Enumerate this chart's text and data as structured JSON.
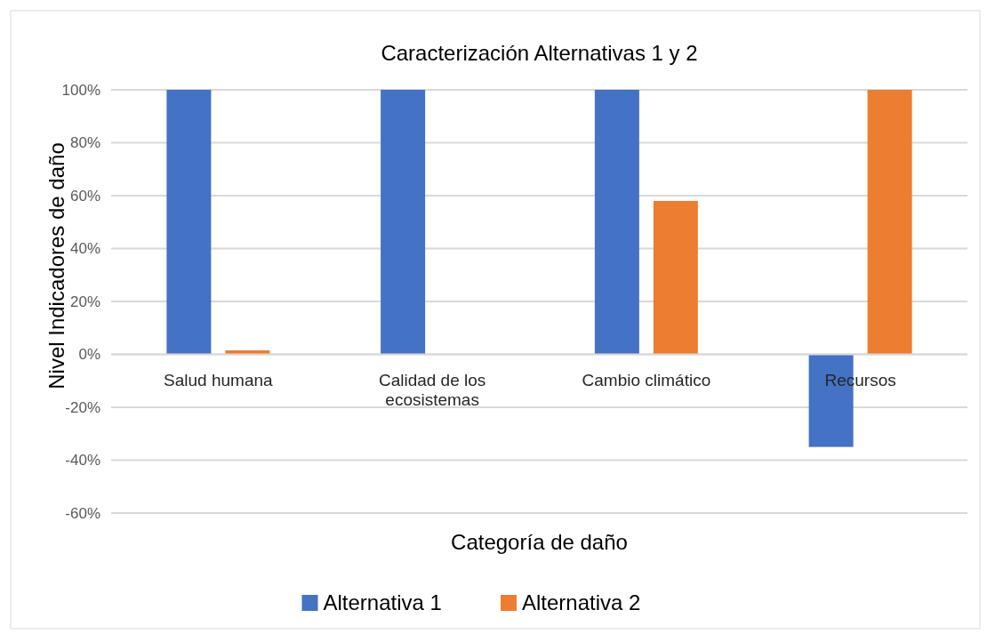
{
  "chart_data": {
    "type": "bar",
    "title": "Caracterización Alternativas 1 y 2",
    "xlabel": "Categoría de daño",
    "ylabel": "Nivel Indicadores de daño",
    "categories": [
      "Salud humana",
      "Calidad de los ecosistemas",
      "Cambio climático",
      "Recursos"
    ],
    "series": [
      {
        "name": "Alternativa 1",
        "color": "#4472c4",
        "values": [
          100,
          100,
          100,
          -35
        ]
      },
      {
        "name": "Alternativa 2",
        "color": "#ed7d31",
        "values": [
          1.5,
          0,
          58,
          100
        ]
      }
    ],
    "ylim": [
      -60,
      100
    ],
    "yticks": [
      {
        "value": -60,
        "label": "-60%"
      },
      {
        "value": -40,
        "label": "-40%"
      },
      {
        "value": -20,
        "label": "-20%"
      },
      {
        "value": 0,
        "label": "0%"
      },
      {
        "value": 20,
        "label": "20%"
      },
      {
        "value": 40,
        "label": "40%"
      },
      {
        "value": 60,
        "label": "60%"
      },
      {
        "value": 80,
        "label": "80%"
      },
      {
        "value": 100,
        "label": "100%"
      }
    ],
    "grid": "y",
    "legend": "bottom"
  }
}
